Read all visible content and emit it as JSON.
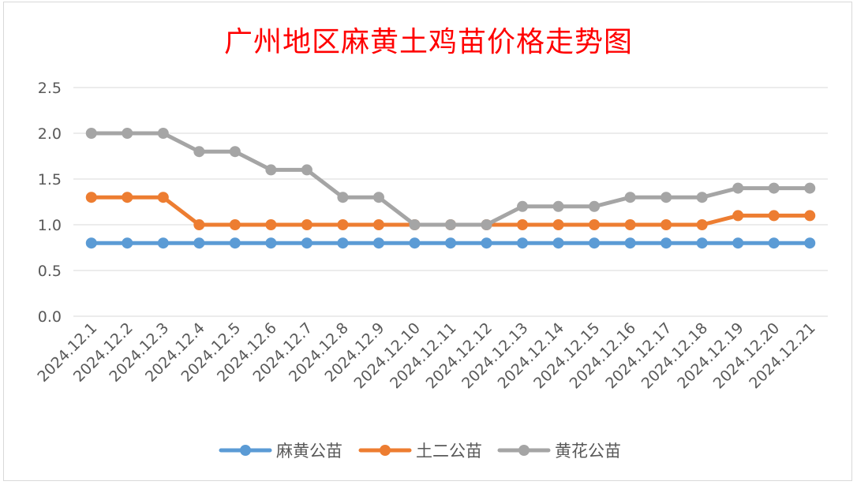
{
  "chart_data": {
    "type": "line",
    "title": "广州地区麻黄土鸡苗价格走势图",
    "xlabel": "",
    "ylabel": "",
    "ylim": [
      0,
      2.5
    ],
    "yticks": [
      "0.0",
      "0.5",
      "1.0",
      "1.5",
      "2.0",
      "2.5"
    ],
    "grid": true,
    "legend_position": "bottom",
    "categories": [
      "2024.12.1",
      "2024.12.2",
      "2024.12.3",
      "2024.12.4",
      "2024.12.5",
      "2024.12.6",
      "2024.12.7",
      "2024.12.8",
      "2024.12.9",
      "2024.12.10",
      "2024.12.11",
      "2024.12.12",
      "2024.12.13",
      "2024.12.14",
      "2024.12.15",
      "2024.12.16",
      "2024.12.17",
      "2024.12.18",
      "2024.12.19",
      "2024.12.20",
      "2024.12.21"
    ],
    "series": [
      {
        "name": "麻黄公苗",
        "color": "#5b9bd5",
        "values": [
          0.8,
          0.8,
          0.8,
          0.8,
          0.8,
          0.8,
          0.8,
          0.8,
          0.8,
          0.8,
          0.8,
          0.8,
          0.8,
          0.8,
          0.8,
          0.8,
          0.8,
          0.8,
          0.8,
          0.8,
          0.8
        ]
      },
      {
        "name": "土二公苗",
        "color": "#ed7d31",
        "values": [
          1.3,
          1.3,
          1.3,
          1.0,
          1.0,
          1.0,
          1.0,
          1.0,
          1.0,
          1.0,
          1.0,
          1.0,
          1.0,
          1.0,
          1.0,
          1.0,
          1.0,
          1.0,
          1.1,
          1.1,
          1.1
        ]
      },
      {
        "name": "黄花公苗",
        "color": "#a5a5a5",
        "values": [
          2.0,
          2.0,
          2.0,
          1.8,
          1.8,
          1.6,
          1.6,
          1.3,
          1.3,
          1.0,
          1.0,
          1.0,
          1.2,
          1.2,
          1.2,
          1.3,
          1.3,
          1.3,
          1.4,
          1.4,
          1.4
        ]
      }
    ]
  }
}
